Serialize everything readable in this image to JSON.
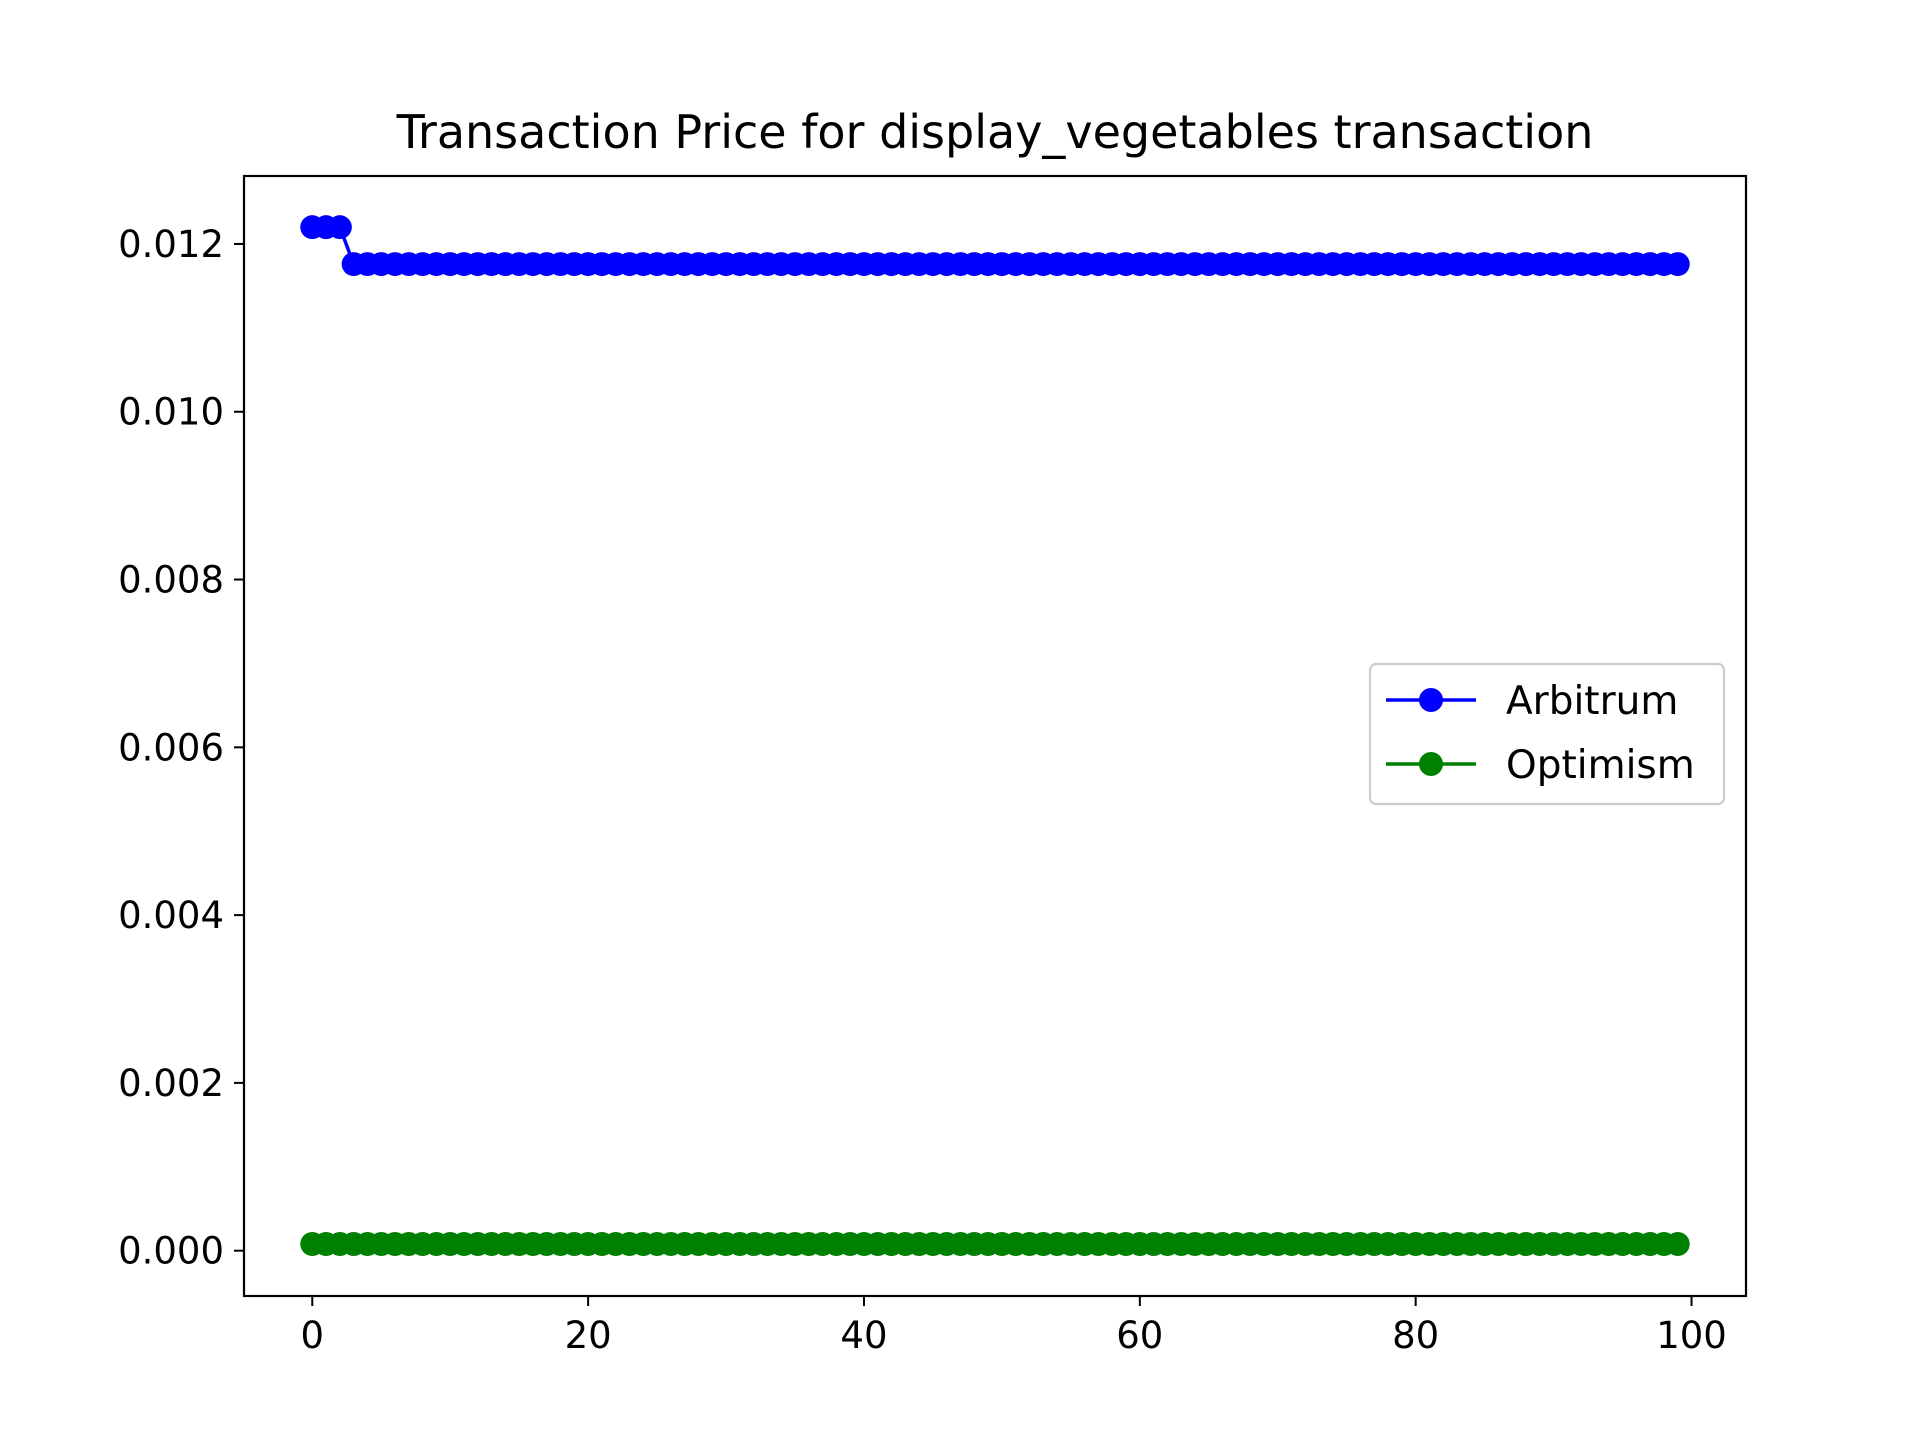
{
  "chart_data": {
    "type": "line",
    "title": "Transaction Price for display_vegetables transaction",
    "xlabel": "",
    "ylabel": "",
    "xlim": [
      -4.95,
      103.95
    ],
    "ylim": [
      -0.00054,
      0.01281
    ],
    "xticks": [
      0,
      20,
      40,
      60,
      80,
      100
    ],
    "yticks": [
      0.0,
      0.002,
      0.004,
      0.006,
      0.008,
      0.01,
      0.012
    ],
    "ytick_labels": [
      "0.000",
      "0.002",
      "0.004",
      "0.006",
      "0.008",
      "0.010",
      "0.012"
    ],
    "xtick_labels": [
      "0",
      "20",
      "40",
      "60",
      "80",
      "100"
    ],
    "grid": false,
    "legend_position": "center-right",
    "series": [
      {
        "name": "Arbitrum",
        "color": "#0000ff",
        "marker": "circle",
        "x_start": 0,
        "x_step": 1,
        "values": [
          0.0122,
          0.0122,
          0.0122,
          0.01176,
          0.01176,
          0.01176,
          0.01176,
          0.01176,
          0.01176,
          0.01176,
          0.01176,
          0.01176,
          0.01176,
          0.01176,
          0.01176,
          0.01176,
          0.01176,
          0.01176,
          0.01176,
          0.01176,
          0.01176,
          0.01176,
          0.01176,
          0.01176,
          0.01176,
          0.01176,
          0.01176,
          0.01176,
          0.01176,
          0.01176,
          0.01176,
          0.01176,
          0.01176,
          0.01176,
          0.01176,
          0.01176,
          0.01176,
          0.01176,
          0.01176,
          0.01176,
          0.01176,
          0.01176,
          0.01176,
          0.01176,
          0.01176,
          0.01176,
          0.01176,
          0.01176,
          0.01176,
          0.01176,
          0.01176,
          0.01176,
          0.01176,
          0.01176,
          0.01176,
          0.01176,
          0.01176,
          0.01176,
          0.01176,
          0.01176,
          0.01176,
          0.01176,
          0.01176,
          0.01176,
          0.01176,
          0.01176,
          0.01176,
          0.01176,
          0.01176,
          0.01176,
          0.01176,
          0.01176,
          0.01176,
          0.01176,
          0.01176,
          0.01176,
          0.01176,
          0.01176,
          0.01176,
          0.01176,
          0.01176,
          0.01176,
          0.01176,
          0.01176,
          0.01176,
          0.01176,
          0.01176,
          0.01176,
          0.01176,
          0.01176,
          0.01176,
          0.01176,
          0.01176,
          0.01176,
          0.01176,
          0.01176,
          0.01176,
          0.01176,
          0.01176,
          0.01176
        ]
      },
      {
        "name": "Optimism",
        "color": "#008000",
        "marker": "circle",
        "x_start": 0,
        "x_step": 1,
        "values": [
          8e-05,
          8e-05,
          8e-05,
          8e-05,
          8e-05,
          8e-05,
          8e-05,
          8e-05,
          8e-05,
          8e-05,
          8e-05,
          8e-05,
          8e-05,
          8e-05,
          8e-05,
          8e-05,
          8e-05,
          8e-05,
          8e-05,
          8e-05,
          8e-05,
          8e-05,
          8e-05,
          8e-05,
          8e-05,
          8e-05,
          8e-05,
          8e-05,
          8e-05,
          8e-05,
          8e-05,
          8e-05,
          8e-05,
          8e-05,
          8e-05,
          8e-05,
          8e-05,
          8e-05,
          8e-05,
          8e-05,
          8e-05,
          8e-05,
          8e-05,
          8e-05,
          8e-05,
          8e-05,
          8e-05,
          8e-05,
          8e-05,
          8e-05,
          8e-05,
          8e-05,
          8e-05,
          8e-05,
          8e-05,
          8e-05,
          8e-05,
          8e-05,
          8e-05,
          8e-05,
          8e-05,
          8e-05,
          8e-05,
          8e-05,
          8e-05,
          8e-05,
          8e-05,
          8e-05,
          8e-05,
          8e-05,
          8e-05,
          8e-05,
          8e-05,
          8e-05,
          8e-05,
          8e-05,
          8e-05,
          8e-05,
          8e-05,
          8e-05,
          8e-05,
          8e-05,
          8e-05,
          8e-05,
          8e-05,
          8e-05,
          8e-05,
          8e-05,
          8e-05,
          8e-05,
          8e-05,
          8e-05,
          8e-05,
          8e-05,
          8e-05,
          8e-05,
          8e-05,
          8e-05,
          8e-05,
          8e-05
        ]
      }
    ]
  }
}
